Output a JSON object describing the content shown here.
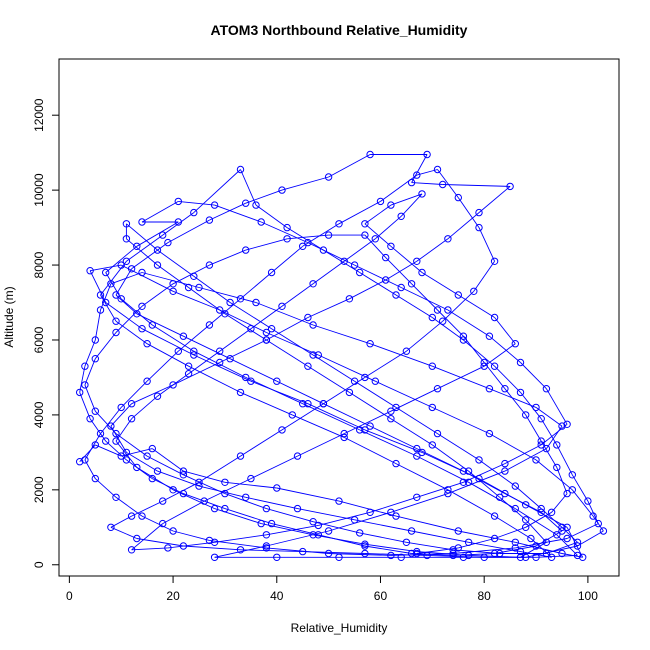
{
  "chart_data": {
    "type": "line",
    "title": "ATOM3 Northbound Relative_Humidity",
    "xlabel": "Relative_Humidity",
    "ylabel": "Altitude (m)",
    "xlim": [
      -2,
      106
    ],
    "ylim": [
      -300,
      13500
    ],
    "xticks": [
      0,
      20,
      40,
      60,
      80,
      100
    ],
    "yticks": [
      0,
      2000,
      4000,
      6000,
      8000,
      10000,
      12000
    ],
    "grid": false,
    "line_color": "#0000ff",
    "marker": "open-circle",
    "series": [
      {
        "name": "",
        "points": [
          [
            2,
            2750
          ],
          [
            5,
            3200
          ],
          [
            10,
            2900
          ],
          [
            16,
            3100
          ],
          [
            22,
            2500
          ],
          [
            30,
            2200
          ],
          [
            40,
            2050
          ],
          [
            52,
            1700
          ],
          [
            63,
            1300
          ],
          [
            75,
            900
          ],
          [
            86,
            600
          ],
          [
            95,
            300
          ],
          [
            99,
            200
          ],
          [
            96,
            1000
          ],
          [
            88,
            1600
          ],
          [
            79,
            2300
          ],
          [
            68,
            3000
          ],
          [
            57,
            3600
          ],
          [
            46,
            4300
          ],
          [
            35,
            4900
          ],
          [
            24,
            5600
          ],
          [
            14,
            6300
          ],
          [
            7,
            7000
          ],
          [
            4,
            7850
          ],
          [
            10,
            8000
          ],
          [
            20,
            7300
          ],
          [
            29,
            6800
          ],
          [
            38,
            6200
          ],
          [
            48,
            5600
          ],
          [
            59,
            4900
          ],
          [
            70,
            4200
          ],
          [
            81,
            3500
          ],
          [
            90,
            2800
          ],
          [
            97,
            2000
          ],
          [
            101,
            1300
          ],
          [
            103,
            900
          ],
          [
            98,
            500
          ],
          [
            88,
            200
          ],
          [
            76,
            200
          ],
          [
            64,
            200
          ],
          [
            52,
            200
          ],
          [
            40,
            200
          ],
          [
            28,
            200
          ],
          [
            38,
            500
          ],
          [
            50,
            900
          ],
          [
            62,
            1400
          ],
          [
            73,
            1900
          ],
          [
            84,
            2500
          ],
          [
            92,
            3100
          ],
          [
            95,
            3700
          ],
          [
            90,
            4200
          ],
          [
            81,
            4700
          ],
          [
            70,
            5300
          ],
          [
            58,
            5900
          ],
          [
            47,
            6400
          ],
          [
            36,
            7000
          ],
          [
            25,
            7400
          ],
          [
            14,
            7800
          ],
          [
            8,
            7500
          ],
          [
            6,
            6800
          ],
          [
            5,
            6000
          ],
          [
            3,
            5300
          ],
          [
            2,
            4600
          ],
          [
            4,
            3900
          ],
          [
            7,
            3300
          ],
          [
            11,
            2800
          ],
          [
            16,
            2300
          ],
          [
            22,
            1900
          ],
          [
            30,
            1500
          ],
          [
            39,
            1100
          ],
          [
            48,
            800
          ],
          [
            57,
            500
          ],
          [
            66,
            300
          ],
          [
            74,
            250
          ],
          [
            82,
            300
          ],
          [
            90,
            500
          ],
          [
            95,
            900
          ],
          [
            91,
            1400
          ],
          [
            84,
            1900
          ],
          [
            76,
            2500
          ],
          [
            67,
            3100
          ],
          [
            58,
            3700
          ],
          [
            49,
            4300
          ],
          [
            40,
            4900
          ],
          [
            31,
            5500
          ],
          [
            22,
            6100
          ],
          [
            13,
            6700
          ],
          [
            9,
            7200
          ],
          [
            12,
            7900
          ],
          [
            19,
            8600
          ],
          [
            27,
            9200
          ],
          [
            34,
            9650
          ],
          [
            41,
            10000
          ],
          [
            50,
            10350
          ],
          [
            58,
            10950
          ],
          [
            69,
            10950
          ],
          [
            66,
            10200
          ],
          [
            72,
            10150
          ],
          [
            85,
            10100
          ],
          [
            79,
            9400
          ],
          [
            73,
            8700
          ],
          [
            67,
            8100
          ],
          [
            61,
            7600
          ],
          [
            54,
            7100
          ],
          [
            46,
            6600
          ],
          [
            38,
            6000
          ],
          [
            29,
            5400
          ],
          [
            20,
            4800
          ],
          [
            12,
            4300
          ],
          [
            8,
            3700
          ],
          [
            11,
            3000
          ],
          [
            17,
            2500
          ],
          [
            25,
            2100
          ],
          [
            34,
            1800
          ],
          [
            44,
            1500
          ],
          [
            55,
            1200
          ],
          [
            66,
            900
          ],
          [
            77,
            600
          ],
          [
            87,
            350
          ],
          [
            93,
            200
          ],
          [
            89,
            700
          ],
          [
            82,
            1300
          ],
          [
            73,
            2000
          ],
          [
            63,
            2700
          ],
          [
            53,
            3400
          ],
          [
            43,
            4000
          ],
          [
            33,
            4600
          ],
          [
            23,
            5300
          ],
          [
            15,
            5900
          ],
          [
            9,
            6500
          ],
          [
            6,
            7200
          ],
          [
            11,
            8100
          ],
          [
            18,
            8800
          ],
          [
            24,
            9400
          ],
          [
            33,
            10550
          ],
          [
            36,
            9600
          ],
          [
            42,
            9000
          ],
          [
            49,
            8400
          ],
          [
            56,
            7800
          ],
          [
            63,
            7200
          ],
          [
            70,
            6600
          ],
          [
            76,
            6000
          ],
          [
            82,
            5300
          ],
          [
            87,
            4600
          ],
          [
            91,
            3900
          ],
          [
            94,
            3200
          ],
          [
            97,
            2400
          ],
          [
            100,
            1700
          ],
          [
            102,
            1100
          ],
          [
            96,
            700
          ],
          [
            86,
            450
          ],
          [
            74,
            300
          ],
          [
            62,
            250
          ],
          [
            50,
            300
          ],
          [
            38,
            450
          ],
          [
            27,
            650
          ],
          [
            20,
            900
          ],
          [
            14,
            1300
          ],
          [
            9,
            1800
          ],
          [
            5,
            2300
          ],
          [
            3,
            2800
          ],
          [
            6,
            3500
          ],
          [
            10,
            4200
          ],
          [
            15,
            4900
          ],
          [
            21,
            5700
          ],
          [
            27,
            6400
          ],
          [
            33,
            7100
          ],
          [
            39,
            7800
          ],
          [
            45,
            8500
          ],
          [
            52,
            9100
          ],
          [
            60,
            9700
          ],
          [
            67,
            10400
          ],
          [
            71,
            10550
          ],
          [
            75,
            9800
          ],
          [
            79,
            9000
          ],
          [
            82,
            8100
          ],
          [
            78,
            7300
          ],
          [
            72,
            6500
          ],
          [
            65,
            5700
          ],
          [
            57,
            5000
          ],
          [
            49,
            4300
          ],
          [
            41,
            3600
          ],
          [
            33,
            2900
          ],
          [
            25,
            2200
          ],
          [
            18,
            1700
          ],
          [
            12,
            1300
          ],
          [
            8,
            1000
          ],
          [
            13,
            700
          ],
          [
            22,
            500
          ],
          [
            33,
            400
          ],
          [
            45,
            350
          ],
          [
            57,
            300
          ],
          [
            69,
            250
          ],
          [
            80,
            200
          ],
          [
            90,
            200
          ],
          [
            98,
            250
          ],
          [
            94,
            800
          ],
          [
            86,
            1500
          ],
          [
            77,
            2200
          ],
          [
            67,
            2900
          ],
          [
            56,
            3600
          ],
          [
            45,
            4300
          ],
          [
            34,
            5000
          ],
          [
            24,
            5700
          ],
          [
            16,
            6400
          ],
          [
            10,
            7100
          ],
          [
            7,
            7800
          ],
          [
            13,
            8500
          ],
          [
            21,
            9150
          ],
          [
            14,
            9150
          ],
          [
            21,
            9700
          ],
          [
            28,
            9600
          ],
          [
            37,
            9150
          ],
          [
            46,
            8600
          ],
          [
            55,
            8000
          ],
          [
            64,
            7400
          ],
          [
            73,
            6800
          ],
          [
            81,
            6100
          ],
          [
            87,
            5400
          ],
          [
            92,
            4700
          ],
          [
            96,
            3750
          ],
          [
            91,
            3200
          ],
          [
            84,
            2700
          ],
          [
            76,
            2200
          ],
          [
            67,
            1800
          ],
          [
            58,
            1400
          ],
          [
            48,
            1050
          ],
          [
            38,
            800
          ],
          [
            28,
            600
          ],
          [
            19,
            450
          ],
          [
            12,
            400
          ],
          [
            18,
            1100
          ],
          [
            26,
            1700
          ],
          [
            35,
            2300
          ],
          [
            44,
            2900
          ],
          [
            53,
            3500
          ],
          [
            62,
            4100
          ],
          [
            71,
            4700
          ],
          [
            80,
            5300
          ],
          [
            86,
            5900
          ],
          [
            82,
            6600
          ],
          [
            75,
            7200
          ],
          [
            68,
            7800
          ],
          [
            62,
            8500
          ],
          [
            57,
            9100
          ],
          [
            62,
            9600
          ],
          [
            68,
            9900
          ],
          [
            64,
            9300
          ],
          [
            59,
            8700
          ],
          [
            53,
            8100
          ],
          [
            47,
            7500
          ],
          [
            41,
            6900
          ],
          [
            35,
            6300
          ],
          [
            29,
            5700
          ],
          [
            23,
            5100
          ],
          [
            17,
            4500
          ],
          [
            12,
            3900
          ],
          [
            9,
            3300
          ],
          [
            13,
            2600
          ],
          [
            20,
            2000
          ],
          [
            28,
            1500
          ],
          [
            37,
            1100
          ],
          [
            47,
            800
          ],
          [
            57,
            550
          ],
          [
            67,
            350
          ],
          [
            77,
            250
          ],
          [
            87,
            200
          ],
          [
            92,
            600
          ],
          [
            88,
            1200
          ],
          [
            83,
            1800
          ],
          [
            77,
            2500
          ],
          [
            70,
            3200
          ],
          [
            62,
            3900
          ],
          [
            54,
            4600
          ],
          [
            46,
            5300
          ],
          [
            38,
            6000
          ],
          [
            30,
            6700
          ],
          [
            23,
            7400
          ],
          [
            17,
            8000
          ],
          [
            11,
            8700
          ],
          [
            11,
            9100
          ],
          [
            17,
            8400
          ],
          [
            24,
            7700
          ],
          [
            31,
            7000
          ],
          [
            39,
            6300
          ],
          [
            47,
            5600
          ],
          [
            55,
            4900
          ],
          [
            63,
            4200
          ],
          [
            71,
            3500
          ],
          [
            79,
            2800
          ],
          [
            86,
            2100
          ],
          [
            91,
            1500
          ],
          [
            95,
            1000
          ],
          [
            98,
            600
          ],
          [
            92,
            300
          ],
          [
            83,
            300
          ],
          [
            74,
            400
          ],
          [
            65,
            600
          ],
          [
            56,
            850
          ],
          [
            47,
            1150
          ],
          [
            38,
            1500
          ],
          [
            30,
            1900
          ],
          [
            22,
            2400
          ],
          [
            15,
            2900
          ],
          [
            9,
            3500
          ],
          [
            5,
            4100
          ],
          [
            3,
            4800
          ],
          [
            5,
            5500
          ],
          [
            9,
            6200
          ],
          [
            14,
            6900
          ],
          [
            20,
            7500
          ],
          [
            27,
            8000
          ],
          [
            34,
            8400
          ],
          [
            42,
            8700
          ],
          [
            50,
            8800
          ],
          [
            57,
            8800
          ],
          [
            61,
            8200
          ],
          [
            66,
            7500
          ],
          [
            71,
            6800
          ],
          [
            76,
            6100
          ],
          [
            80,
            5400
          ],
          [
            84,
            4700
          ],
          [
            88,
            4000
          ],
          [
            91,
            3300
          ],
          [
            94,
            2600
          ],
          [
            96,
            1900
          ],
          [
            93,
            1400
          ],
          [
            88,
            1000
          ],
          [
            82,
            700
          ],
          [
            75,
            450
          ],
          [
            67,
            300
          ]
        ]
      }
    ]
  }
}
